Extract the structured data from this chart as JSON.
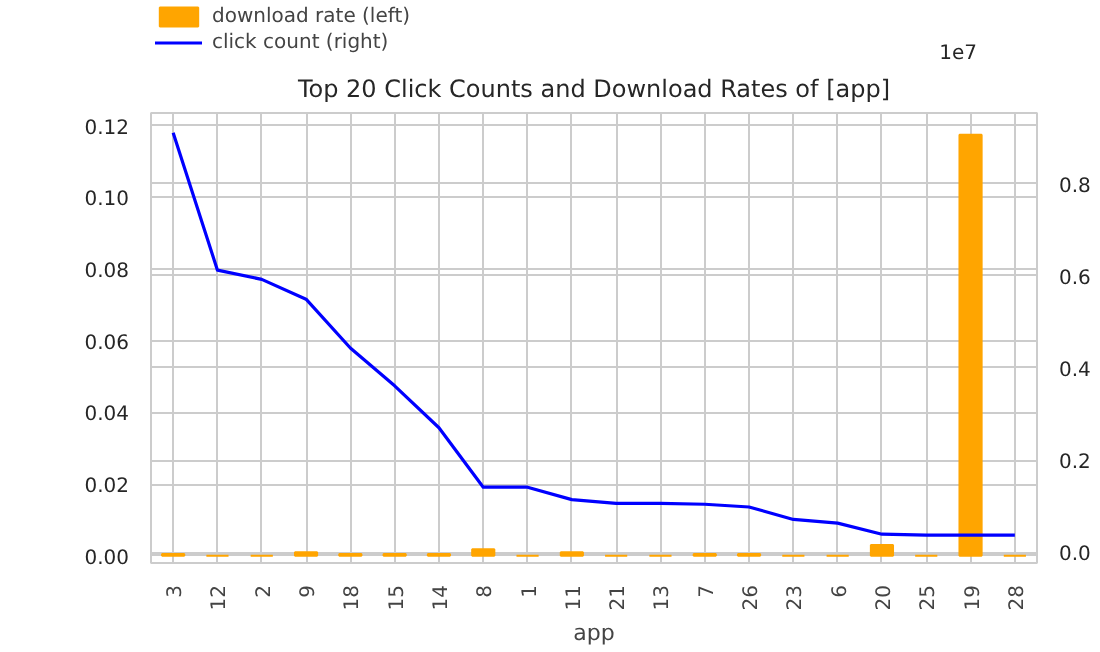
{
  "chart_data": {
    "type": "bar",
    "title": "Top 20 Click Counts and Download Rates of [app]",
    "xlabel": "app",
    "categories": [
      "3",
      "12",
      "2",
      "9",
      "18",
      "15",
      "14",
      "8",
      "1",
      "11",
      "21",
      "13",
      "7",
      "26",
      "23",
      "6",
      "20",
      "25",
      "19",
      "28"
    ],
    "series": [
      {
        "name": "download rate (left)",
        "color": "#ffa500",
        "values": [
          0.0005,
          0,
          0,
          0.001,
          0.0005,
          0.0005,
          0.0005,
          0.0018,
          0,
          0.001,
          0,
          0,
          0.0005,
          0.0005,
          0,
          0,
          0.003,
          0,
          0.1174,
          0
        ]
      },
      {
        "name": "click count (right)",
        "type": "line",
        "axis": "y2",
        "color": "#0000ff",
        "values": [
          0.91,
          0.612,
          0.592,
          0.549,
          0.443,
          0.361,
          0.27,
          0.141,
          0.141,
          0.114,
          0.106,
          0.106,
          0.104,
          0.098,
          0.071,
          0.063,
          0.039,
          0.037,
          0.037,
          0.037
        ]
      }
    ],
    "ylim": [
      -0.002,
      0.1235
    ],
    "yticks": [
      {
        "value": 0,
        "label": "0.00"
      },
      {
        "value": 0.02,
        "label": "0.02"
      },
      {
        "value": 0.04,
        "label": "0.04"
      },
      {
        "value": 0.06,
        "label": "0.06"
      },
      {
        "value": 0.08,
        "label": "0.08"
      },
      {
        "value": 0.1,
        "label": "0.10"
      },
      {
        "value": 0.12,
        "label": "0.12"
      }
    ],
    "y2lim": [
      -0.0235,
      0.953
    ],
    "y2ticks": [
      {
        "value": 0,
        "label": "0.0"
      },
      0.2,
      0.4,
      0.6,
      0.8
    ],
    "annotations": [
      "1e7"
    ],
    "grid": true,
    "legend": "top left"
  }
}
